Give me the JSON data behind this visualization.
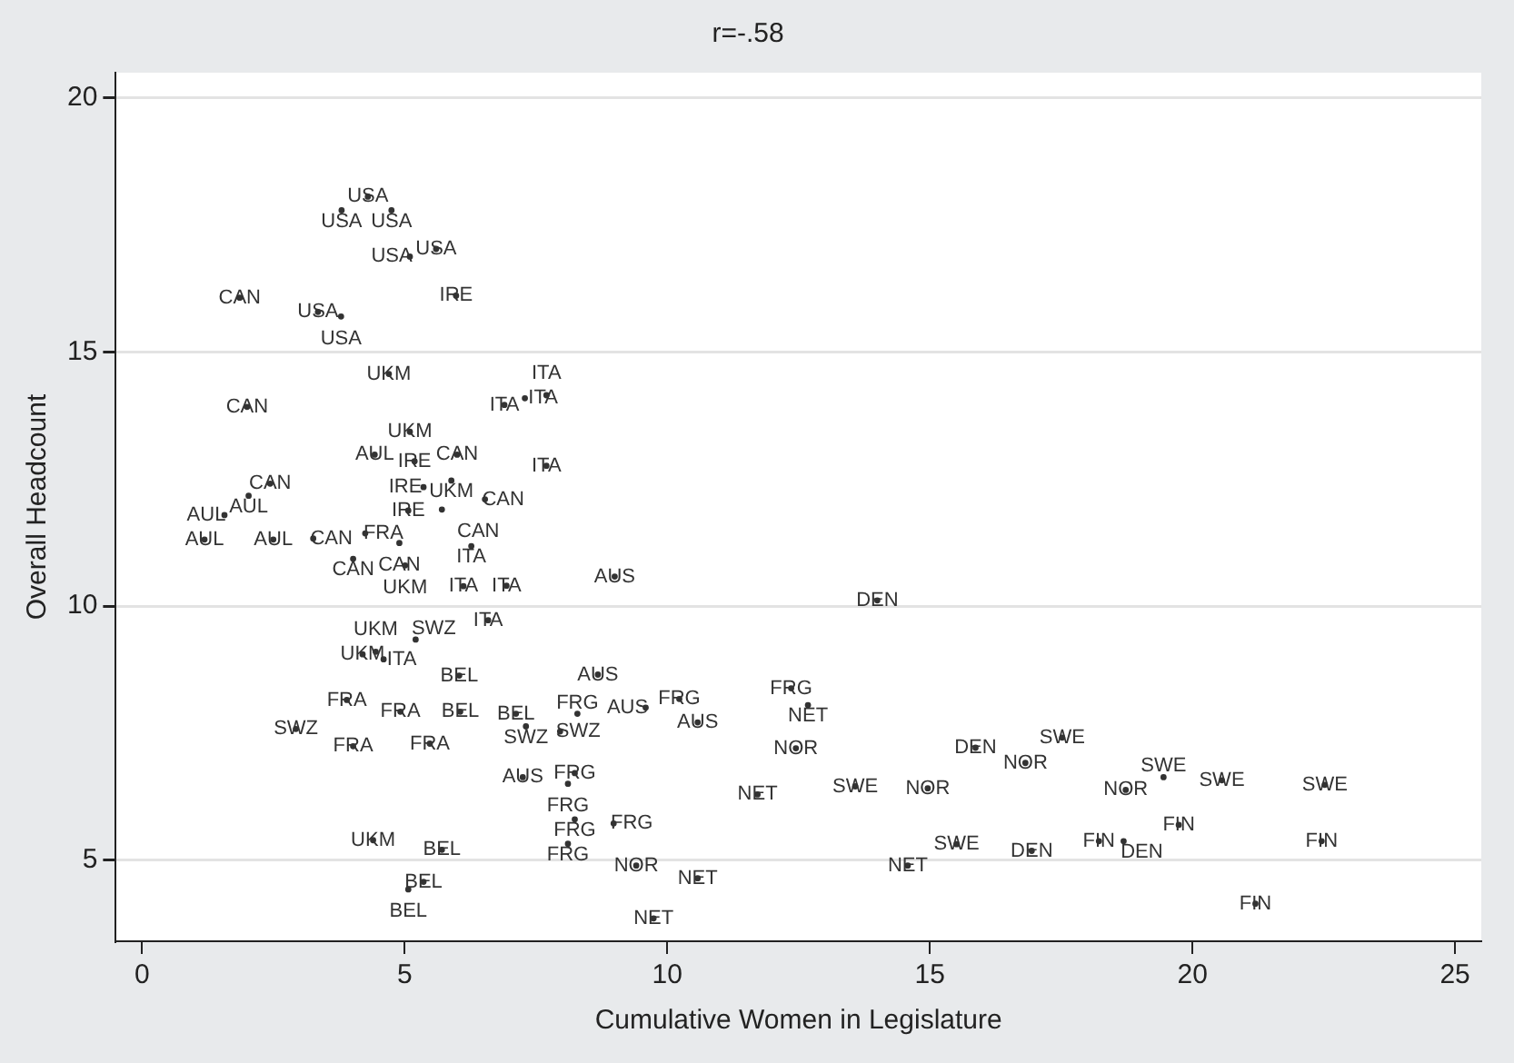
{
  "chart_data": {
    "type": "scatter",
    "title": "r=-.58",
    "xlabel": "Cumulative Women in Legislature",
    "ylabel": "Overall Headcount",
    "xlim": [
      -0.5,
      25.5
    ],
    "xticks": [
      0,
      5,
      10,
      15,
      20,
      25
    ],
    "ylim": [
      3.4,
      20.5
    ],
    "yticks": [
      5,
      10,
      15,
      20
    ],
    "grid": "y",
    "marker": "circle",
    "legend": false,
    "series": [
      {
        "color": "#333333",
        "x": [
          4.3,
          3.8,
          4.75,
          5.6,
          5.1,
          1.86,
          5.98,
          3.35,
          3.79,
          4.7,
          2.0,
          6.9,
          7.29,
          7.7,
          5.1,
          4.43,
          5.19,
          6.0,
          7.7,
          5.89,
          5.36,
          6.53,
          5.07,
          5.71,
          2.44,
          2.03,
          1.57,
          1.19,
          2.5,
          3.26,
          4.25,
          4.9,
          4.02,
          5.01,
          6.27,
          6.12,
          6.94,
          6.59,
          9.0,
          14.0,
          4.2,
          4.45,
          4.6,
          5.21,
          6.04,
          3.9,
          4.92,
          6.06,
          7.12,
          2.93,
          4.02,
          5.48,
          7.31,
          7.96,
          8.29,
          8.68,
          10.23,
          9.59,
          10.58,
          12.36,
          12.68,
          12.45,
          11.72,
          13.58,
          14.96,
          7.25,
          8.24,
          8.11,
          8.24,
          8.98,
          8.11,
          9.41,
          10.58,
          9.74,
          14.58,
          15.51,
          4.4,
          5.71,
          5.36,
          5.07,
          15.87,
          17.52,
          16.82,
          18.73,
          19.45,
          20.56,
          22.52,
          19.74,
          18.22,
          18.69,
          22.46,
          21.2,
          16.94
        ],
        "values": [
          18.06,
          17.79,
          17.79,
          17.03,
          16.88,
          16.07,
          16.11,
          15.79,
          15.7,
          14.57,
          13.92,
          13.96,
          14.09,
          14.15,
          13.43,
          12.98,
          12.85,
          12.98,
          12.76,
          12.47,
          12.34,
          12.1,
          11.88,
          11.9,
          12.41,
          12.17,
          11.79,
          11.31,
          11.31,
          11.33,
          11.43,
          11.24,
          10.93,
          10.8,
          11.18,
          10.39,
          10.4,
          9.72,
          10.58,
          10.11,
          9.05,
          9.1,
          8.95,
          9.34,
          8.63,
          8.15,
          7.92,
          7.92,
          7.88,
          7.58,
          7.24,
          7.29,
          7.63,
          7.53,
          7.88,
          8.65,
          8.17,
          8.0,
          7.71,
          8.38,
          8.05,
          7.2,
          6.29,
          6.45,
          6.41,
          6.63,
          6.71,
          6.5,
          5.8,
          5.72,
          5.32,
          4.89,
          4.64,
          3.85,
          4.89,
          5.31,
          5.39,
          5.2,
          4.57,
          4.42,
          7.21,
          7.41,
          6.91,
          6.38,
          6.63,
          6.57,
          6.48,
          5.69,
          5.37,
          5.37,
          5.37,
          4.14,
          5.18
        ],
        "value_labels": [
          "USA",
          "USA",
          "USA",
          "USA",
          "USA",
          "CAN",
          "IRE",
          "USA",
          "USA",
          "UKM",
          "CAN",
          "ITA",
          "ITA",
          "ITA",
          "UKM",
          "AUL",
          "IRE",
          "CAN",
          "ITA",
          "UKM",
          "IRE",
          "CAN",
          "IRE",
          "CAN",
          "CAN",
          "AUL",
          "AUL",
          "AUL",
          "AUL",
          "CAN",
          "FRA",
          "CAN",
          "CAN",
          "UKM",
          "ITA",
          "ITA",
          "ITA",
          "ITA",
          "AUS",
          "DEN",
          "UKM",
          "UKM",
          "ITA",
          "SWZ",
          "BEL",
          "FRA",
          "FRA",
          "BEL",
          "BEL",
          "SWZ",
          "FRA",
          "FRA",
          "SWZ",
          "SWZ",
          "FRG",
          "AUS",
          "FRG",
          "AUS",
          "AUS",
          "FRG",
          "NET",
          "NOR",
          "NET",
          "SWE",
          "NOR",
          "AUS",
          "FRG",
          "FRG",
          "FRG",
          "FRG",
          "FRG",
          "NOR",
          "NET",
          "NET",
          "NET",
          "SWE",
          "UKM",
          "BEL",
          "BEL",
          "BEL",
          "DEN",
          "SWE",
          "NOR",
          "NOR",
          "SWE",
          "SWE",
          "SWE",
          "FIN",
          "FIN",
          "DEN",
          "FIN",
          "FIN",
          "DEN"
        ]
      }
    ]
  }
}
